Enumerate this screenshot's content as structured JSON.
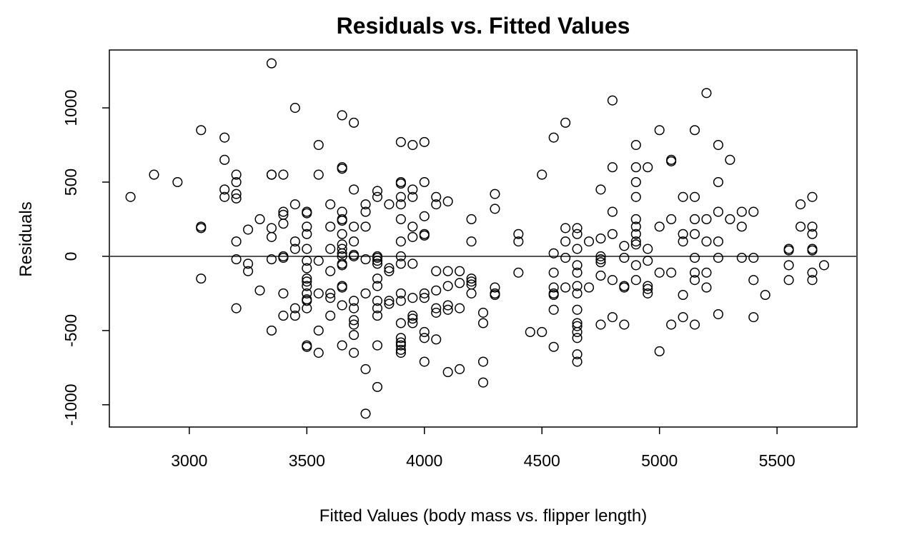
{
  "chart_data": {
    "type": "scatter",
    "title": "Residuals vs. Fitted Values",
    "xlabel": "Fitted Values (body mass vs. flipper length)",
    "ylabel": "Residuals",
    "xlim": [
      2660,
      5840
    ],
    "ylim": [
      -1150,
      1390
    ],
    "xticks": [
      3000,
      3500,
      4000,
      4500,
      5000,
      5500
    ],
    "xtick_labels": [
      "3000",
      "3500",
      "4000",
      "4500",
      "5000",
      "5500"
    ],
    "yticks": [
      -1000,
      -500,
      0,
      500,
      1000
    ],
    "ytick_labels": [
      "-1000",
      "-500",
      "0",
      "500",
      "1000"
    ],
    "reference_line": 0,
    "grid": false,
    "legend": "none",
    "marker": "open-circle",
    "colors": {
      "points": "#000000",
      "axis": "#000000",
      "reference_line": "#555555"
    },
    "points": [
      [
        2750,
        400
      ],
      [
        2850,
        550
      ],
      [
        2950,
        500
      ],
      [
        3050,
        850
      ],
      [
        3050,
        200
      ],
      [
        3050,
        190
      ],
      [
        3050,
        -150
      ],
      [
        3150,
        800
      ],
      [
        3150,
        650
      ],
      [
        3150,
        450
      ],
      [
        3150,
        400
      ],
      [
        3200,
        550
      ],
      [
        3200,
        500
      ],
      [
        3200,
        420
      ],
      [
        3200,
        390
      ],
      [
        3200,
        100
      ],
      [
        3200,
        -20
      ],
      [
        3200,
        -350
      ],
      [
        3250,
        180
      ],
      [
        3250,
        -50
      ],
      [
        3250,
        -100
      ],
      [
        3300,
        250
      ],
      [
        3300,
        -230
      ],
      [
        3350,
        1300
      ],
      [
        3350,
        550
      ],
      [
        3350,
        550
      ],
      [
        3350,
        190
      ],
      [
        3350,
        130
      ],
      [
        3350,
        -20
      ],
      [
        3350,
        -500
      ],
      [
        3400,
        550
      ],
      [
        3400,
        300
      ],
      [
        3400,
        280
      ],
      [
        3400,
        220
      ],
      [
        3400,
        0
      ],
      [
        3400,
        -10
      ],
      [
        3400,
        -250
      ],
      [
        3400,
        -400
      ],
      [
        3450,
        1000
      ],
      [
        3450,
        350
      ],
      [
        3450,
        100
      ],
      [
        3450,
        50
      ],
      [
        3450,
        -350
      ],
      [
        3450,
        -400
      ],
      [
        3500,
        300
      ],
      [
        3500,
        290
      ],
      [
        3500,
        200
      ],
      [
        3500,
        150
      ],
      [
        3500,
        50
      ],
      [
        3500,
        -30
      ],
      [
        3500,
        -80
      ],
      [
        3500,
        -150
      ],
      [
        3500,
        -170
      ],
      [
        3500,
        -200
      ],
      [
        3500,
        -250
      ],
      [
        3500,
        -290
      ],
      [
        3500,
        -300
      ],
      [
        3500,
        -350
      ],
      [
        3500,
        -600
      ],
      [
        3500,
        -610
      ],
      [
        3550,
        750
      ],
      [
        3550,
        550
      ],
      [
        3550,
        -30
      ],
      [
        3550,
        -250
      ],
      [
        3550,
        -500
      ],
      [
        3550,
        -650
      ],
      [
        3600,
        350
      ],
      [
        3600,
        200
      ],
      [
        3600,
        50
      ],
      [
        3600,
        -100
      ],
      [
        3600,
        -250
      ],
      [
        3600,
        -280
      ],
      [
        3600,
        -400
      ],
      [
        3650,
        950
      ],
      [
        3650,
        600
      ],
      [
        3650,
        590
      ],
      [
        3650,
        300
      ],
      [
        3650,
        250
      ],
      [
        3650,
        240
      ],
      [
        3650,
        150
      ],
      [
        3650,
        80
      ],
      [
        3650,
        50
      ],
      [
        3650,
        20
      ],
      [
        3650,
        0
      ],
      [
        3650,
        -50
      ],
      [
        3650,
        -60
      ],
      [
        3650,
        -200
      ],
      [
        3650,
        -210
      ],
      [
        3650,
        -330
      ],
      [
        3650,
        -600
      ],
      [
        3700,
        900
      ],
      [
        3700,
        450
      ],
      [
        3700,
        200
      ],
      [
        3700,
        100
      ],
      [
        3700,
        10
      ],
      [
        3700,
        0
      ],
      [
        3700,
        -300
      ],
      [
        3700,
        -350
      ],
      [
        3700,
        -430
      ],
      [
        3700,
        -460
      ],
      [
        3700,
        -530
      ],
      [
        3700,
        -650
      ],
      [
        3750,
        350
      ],
      [
        3750,
        300
      ],
      [
        3750,
        200
      ],
      [
        3750,
        -20
      ],
      [
        3750,
        -250
      ],
      [
        3750,
        -760
      ],
      [
        3750,
        -1060
      ],
      [
        3800,
        440
      ],
      [
        3800,
        400
      ],
      [
        3800,
        0
      ],
      [
        3800,
        -10
      ],
      [
        3800,
        -30
      ],
      [
        3800,
        -50
      ],
      [
        3800,
        -150
      ],
      [
        3800,
        -200
      ],
      [
        3800,
        -300
      ],
      [
        3800,
        -350
      ],
      [
        3800,
        -400
      ],
      [
        3800,
        -600
      ],
      [
        3800,
        -880
      ],
      [
        3850,
        350
      ],
      [
        3850,
        -80
      ],
      [
        3850,
        -100
      ],
      [
        3850,
        -300
      ],
      [
        3850,
        -320
      ],
      [
        3900,
        770
      ],
      [
        3900,
        500
      ],
      [
        3900,
        490
      ],
      [
        3900,
        400
      ],
      [
        3900,
        350
      ],
      [
        3900,
        250
      ],
      [
        3900,
        100
      ],
      [
        3900,
        0
      ],
      [
        3900,
        -50
      ],
      [
        3900,
        -250
      ],
      [
        3900,
        -300
      ],
      [
        3900,
        -450
      ],
      [
        3900,
        -550
      ],
      [
        3900,
        -580
      ],
      [
        3900,
        -600
      ],
      [
        3900,
        -630
      ],
      [
        3900,
        -650
      ],
      [
        3950,
        750
      ],
      [
        3950,
        450
      ],
      [
        3950,
        400
      ],
      [
        3950,
        200
      ],
      [
        3950,
        130
      ],
      [
        3950,
        -50
      ],
      [
        3950,
        -280
      ],
      [
        3950,
        -400
      ],
      [
        3950,
        -420
      ],
      [
        3950,
        -450
      ],
      [
        4000,
        770
      ],
      [
        4000,
        500
      ],
      [
        4000,
        270
      ],
      [
        4000,
        150
      ],
      [
        4000,
        140
      ],
      [
        4000,
        -250
      ],
      [
        4000,
        -280
      ],
      [
        4000,
        -510
      ],
      [
        4000,
        -550
      ],
      [
        4000,
        -710
      ],
      [
        4050,
        400
      ],
      [
        4050,
        350
      ],
      [
        4050,
        -100
      ],
      [
        4050,
        -230
      ],
      [
        4050,
        -350
      ],
      [
        4050,
        -380
      ],
      [
        4050,
        -560
      ],
      [
        4100,
        370
      ],
      [
        4100,
        -100
      ],
      [
        4100,
        -200
      ],
      [
        4100,
        -330
      ],
      [
        4100,
        -360
      ],
      [
        4100,
        -780
      ],
      [
        4150,
        -100
      ],
      [
        4150,
        -180
      ],
      [
        4150,
        -350
      ],
      [
        4150,
        -760
      ],
      [
        4200,
        250
      ],
      [
        4200,
        100
      ],
      [
        4200,
        -150
      ],
      [
        4200,
        -170
      ],
      [
        4200,
        -190
      ],
      [
        4200,
        -250
      ],
      [
        4250,
        -380
      ],
      [
        4250,
        -450
      ],
      [
        4250,
        -710
      ],
      [
        4250,
        -850
      ],
      [
        4300,
        420
      ],
      [
        4300,
        320
      ],
      [
        4300,
        -210
      ],
      [
        4300,
        -250
      ],
      [
        4300,
        -260
      ],
      [
        4400,
        150
      ],
      [
        4400,
        100
      ],
      [
        4400,
        -110
      ],
      [
        4450,
        -510
      ],
      [
        4500,
        550
      ],
      [
        4500,
        -510
      ],
      [
        4550,
        800
      ],
      [
        4550,
        20
      ],
      [
        4550,
        -110
      ],
      [
        4550,
        -210
      ],
      [
        4550,
        -250
      ],
      [
        4550,
        -260
      ],
      [
        4550,
        -360
      ],
      [
        4550,
        -610
      ],
      [
        4600,
        900
      ],
      [
        4600,
        190
      ],
      [
        4600,
        100
      ],
      [
        4600,
        -10
      ],
      [
        4600,
        -210
      ],
      [
        4650,
        190
      ],
      [
        4650,
        150
      ],
      [
        4650,
        50
      ],
      [
        4650,
        -60
      ],
      [
        4650,
        -110
      ],
      [
        4650,
        -200
      ],
      [
        4650,
        -250
      ],
      [
        4650,
        -360
      ],
      [
        4650,
        -450
      ],
      [
        4650,
        -470
      ],
      [
        4650,
        -510
      ],
      [
        4650,
        -550
      ],
      [
        4650,
        -660
      ],
      [
        4650,
        -710
      ],
      [
        4700,
        100
      ],
      [
        4700,
        -210
      ],
      [
        4750,
        450
      ],
      [
        4750,
        120
      ],
      [
        4750,
        0
      ],
      [
        4750,
        -20
      ],
      [
        4750,
        -40
      ],
      [
        4750,
        -130
      ],
      [
        4750,
        -460
      ],
      [
        4800,
        1050
      ],
      [
        4800,
        600
      ],
      [
        4800,
        300
      ],
      [
        4800,
        150
      ],
      [
        4800,
        -160
      ],
      [
        4800,
        -410
      ],
      [
        4850,
        70
      ],
      [
        4850,
        -10
      ],
      [
        4850,
        -200
      ],
      [
        4850,
        -210
      ],
      [
        4850,
        -460
      ],
      [
        4900,
        750
      ],
      [
        4900,
        600
      ],
      [
        4900,
        500
      ],
      [
        4900,
        400
      ],
      [
        4900,
        250
      ],
      [
        4900,
        200
      ],
      [
        4900,
        150
      ],
      [
        4900,
        100
      ],
      [
        4900,
        80
      ],
      [
        4900,
        -60
      ],
      [
        4900,
        -160
      ],
      [
        4950,
        600
      ],
      [
        4950,
        50
      ],
      [
        4950,
        -30
      ],
      [
        4950,
        -200
      ],
      [
        4950,
        -220
      ],
      [
        4950,
        -250
      ],
      [
        5000,
        850
      ],
      [
        5000,
        200
      ],
      [
        5000,
        -110
      ],
      [
        5000,
        -640
      ],
      [
        5050,
        650
      ],
      [
        5050,
        640
      ],
      [
        5050,
        250
      ],
      [
        5050,
        -110
      ],
      [
        5050,
        -460
      ],
      [
        5100,
        400
      ],
      [
        5100,
        150
      ],
      [
        5100,
        100
      ],
      [
        5100,
        -260
      ],
      [
        5100,
        -410
      ],
      [
        5150,
        850
      ],
      [
        5150,
        400
      ],
      [
        5150,
        250
      ],
      [
        5150,
        150
      ],
      [
        5150,
        -10
      ],
      [
        5150,
        -110
      ],
      [
        5150,
        -160
      ],
      [
        5150,
        -460
      ],
      [
        5200,
        1100
      ],
      [
        5200,
        250
      ],
      [
        5200,
        100
      ],
      [
        5200,
        -110
      ],
      [
        5200,
        -210
      ],
      [
        5250,
        750
      ],
      [
        5250,
        500
      ],
      [
        5250,
        300
      ],
      [
        5250,
        100
      ],
      [
        5250,
        -10
      ],
      [
        5250,
        -390
      ],
      [
        5300,
        650
      ],
      [
        5300,
        250
      ],
      [
        5350,
        300
      ],
      [
        5350,
        200
      ],
      [
        5350,
        -10
      ],
      [
        5400,
        300
      ],
      [
        5400,
        -10
      ],
      [
        5400,
        -160
      ],
      [
        5400,
        -410
      ],
      [
        5450,
        -260
      ],
      [
        5550,
        50
      ],
      [
        5550,
        40
      ],
      [
        5550,
        -60
      ],
      [
        5550,
        -160
      ],
      [
        5600,
        350
      ],
      [
        5600,
        200
      ],
      [
        5650,
        400
      ],
      [
        5650,
        200
      ],
      [
        5650,
        150
      ],
      [
        5650,
        50
      ],
      [
        5650,
        40
      ],
      [
        5650,
        -110
      ],
      [
        5650,
        -160
      ],
      [
        5700,
        -60
      ]
    ]
  }
}
